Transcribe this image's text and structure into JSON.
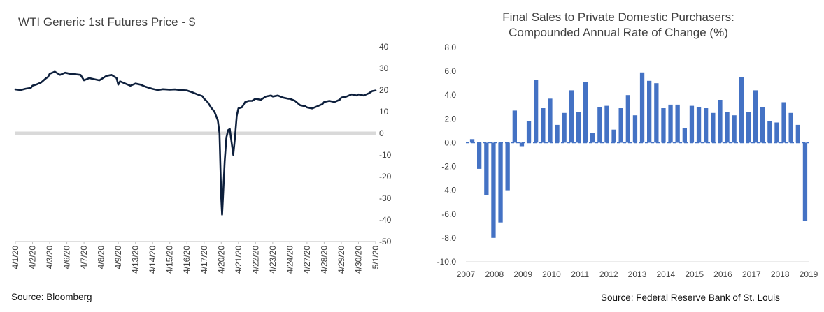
{
  "left": {
    "source": "Source: Bloomberg",
    "chart_data": {
      "type": "line",
      "title": "WTI Generic 1st Futures Price - $",
      "xlabel": "",
      "ylabel": "",
      "ylim": [
        -50,
        40
      ],
      "yticks": [
        40,
        30,
        20,
        10,
        0,
        -10,
        -20,
        -30,
        -40,
        -50
      ],
      "xticks": [
        "4/1/20",
        "4/2/20",
        "4/3/20",
        "4/6/20",
        "4/7/20",
        "4/8/20",
        "4/9/20",
        "4/13/20",
        "4/14/20",
        "4/15/20",
        "4/16/20",
        "4/17/20",
        "4/20/20",
        "4/21/20",
        "4/22/20",
        "4/23/20",
        "4/24/20",
        "4/27/20",
        "4/28/20",
        "4/29/20",
        "4/30/20",
        "5/1/20"
      ],
      "grid": false,
      "zero_line": true,
      "series": [
        {
          "color": "#0d1f3c",
          "x": [
            0,
            0.3,
            0.6,
            0.9,
            1.0,
            1.2,
            1.5,
            1.8,
            1.9,
            2.0,
            2.3,
            2.6,
            2.9,
            3.2,
            3.5,
            3.8,
            4.0,
            4.3,
            4.6,
            4.9,
            5.0,
            5.3,
            5.6,
            5.9,
            6.0,
            6.1,
            6.4,
            6.7,
            7.0,
            7.3,
            7.6,
            8.0,
            8.3,
            8.6,
            9.0,
            9.3,
            9.6,
            10.0,
            10.3,
            10.6,
            10.9,
            11.0,
            11.2,
            11.4,
            11.6,
            11.8,
            11.9,
            12.0,
            12.05,
            12.1,
            12.2,
            12.3,
            12.4,
            12.5,
            12.6,
            12.7,
            12.8,
            12.9,
            13.0,
            13.2,
            13.4,
            13.6,
            13.8,
            14.0,
            14.3,
            14.6,
            14.9,
            15.0,
            15.3,
            15.6,
            15.9,
            16.0,
            16.3,
            16.6,
            16.9,
            17.0,
            17.3,
            17.6,
            17.9,
            18.0,
            18.3,
            18.6,
            18.9,
            19.0,
            19.3,
            19.6,
            19.9,
            20.0,
            20.3,
            20.6,
            20.8,
            21.0
          ],
          "y": [
            20.3,
            20.0,
            20.6,
            21.0,
            22.0,
            22.5,
            23.5,
            25.5,
            26.0,
            27.5,
            28.5,
            27.0,
            28.0,
            27.5,
            27.3,
            27.0,
            24.5,
            25.5,
            25.0,
            24.5,
            25.0,
            26.5,
            27.0,
            25.5,
            22.5,
            24.0,
            23.0,
            22.0,
            23.0,
            22.5,
            21.5,
            20.5,
            20.0,
            20.4,
            20.2,
            20.3,
            20.0,
            19.8,
            19.0,
            18.0,
            17.2,
            16.0,
            14.5,
            12.0,
            10.0,
            6.0,
            0.0,
            -30.0,
            -37.6,
            -30.0,
            -13.0,
            -2.0,
            1.5,
            2.0,
            -4.0,
            -10.0,
            -2.0,
            8.0,
            11.5,
            12.0,
            14.5,
            15.0,
            15.0,
            16.0,
            15.5,
            17.0,
            17.5,
            17.0,
            17.5,
            16.5,
            16.0,
            16.0,
            15.0,
            13.0,
            12.5,
            12.0,
            11.5,
            12.5,
            13.5,
            14.5,
            15.0,
            14.5,
            15.5,
            16.5,
            17.0,
            18.0,
            17.5,
            18.0,
            17.5,
            18.5,
            19.5,
            19.8
          ]
        }
      ]
    }
  },
  "right": {
    "source": "Source: Federal Reserve Bank of St. Louis",
    "chart_data": {
      "type": "bar",
      "title": "Final Sales to Private Domestic Purchasers:\nCompounded Annual Rate of Change (%)",
      "title_lines": [
        "Final Sales to Private Domestic Purchasers:",
        "Compounded Annual Rate of Change (%)"
      ],
      "xlabel": "",
      "ylabel": "",
      "ylim": [
        -10,
        8
      ],
      "yticks": [
        "8.0",
        "6.0",
        "4.0",
        "2.0",
        "0.0",
        "-2.0",
        "-4.0",
        "-6.0",
        "-8.0",
        "-10.0"
      ],
      "xticks": [
        "2007",
        "2008",
        "2009",
        "2010",
        "2011",
        "2012",
        "2013",
        "2014",
        "2015",
        "2016",
        "2017",
        "2018",
        "2019"
      ],
      "color": "#4472c4",
      "grid": false,
      "values": [
        0.3,
        -2.2,
        -4.4,
        -8.0,
        -6.7,
        -4.0,
        2.7,
        -0.3,
        1.8,
        5.3,
        2.9,
        3.7,
        1.5,
        2.5,
        4.4,
        2.6,
        5.1,
        0.8,
        3.0,
        3.1,
        1.1,
        2.9,
        4.0,
        2.3,
        5.9,
        5.2,
        5.0,
        2.9,
        3.2,
        3.2,
        1.2,
        3.1,
        3.0,
        2.9,
        2.5,
        3.6,
        2.6,
        2.3,
        5.5,
        2.6,
        4.4,
        3.0,
        1.8,
        1.7,
        3.4,
        2.5,
        1.5,
        -6.6
      ]
    }
  }
}
